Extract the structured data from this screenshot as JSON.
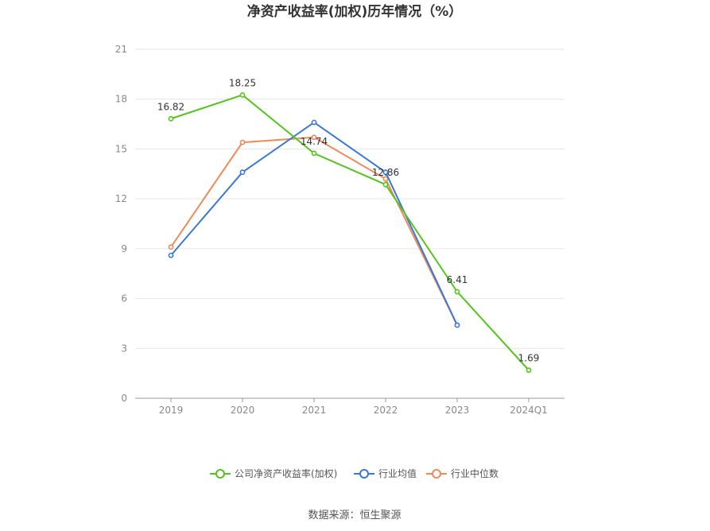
{
  "chart_data": {
    "type": "line",
    "title": "净资产收益率(加权)历年情况（%）",
    "categories": [
      "2019",
      "2020",
      "2021",
      "2022",
      "2023",
      "2024Q1"
    ],
    "ylim": [
      0,
      21
    ],
    "yticks": [
      "0",
      "3",
      "6",
      "9",
      "12",
      "15",
      "18",
      "21"
    ],
    "grid": true,
    "legend_position": "bottom",
    "series": [
      {
        "name": "公司净资产收益率(加权)",
        "color": "#52c41a",
        "values": [
          16.82,
          18.25,
          14.74,
          12.86,
          6.41,
          1.69
        ],
        "labels": [
          "16.82",
          "18.25",
          "14.74",
          "12.86",
          "6.41",
          "1.69"
        ]
      },
      {
        "name": "行业均值",
        "color": "#3a78d8",
        "values": [
          8.6,
          13.6,
          16.6,
          13.6,
          4.4,
          null
        ]
      },
      {
        "name": "行业中位数",
        "color": "#ee8a5a",
        "values": [
          9.1,
          15.4,
          15.7,
          13.2,
          4.4,
          null
        ]
      }
    ],
    "source": "数据来源：恒生聚源"
  }
}
